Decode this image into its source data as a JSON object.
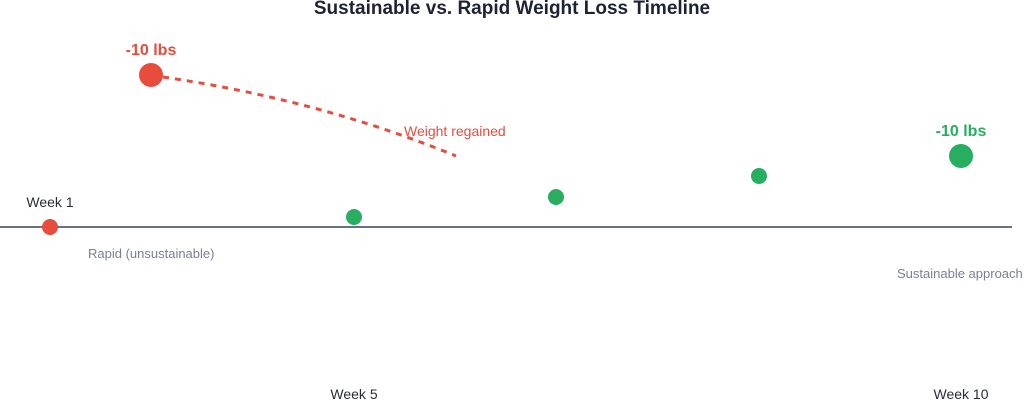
{
  "title": "Sustainable vs. Rapid Weight Loss Timeline",
  "labels": {
    "week_1": "Week 1",
    "week_5": "Week 5",
    "week_10": "Week 10",
    "rapid": "Rapid (unsustainable)",
    "sustainable": "Sustainable approach",
    "rapid_loss": "-10 lbs",
    "sustainable_loss": "-10 lbs",
    "regain": "Weight regained"
  },
  "colors": {
    "rapid": "#e74c3c",
    "sustainable": "#27ae60",
    "baseline": "#6b6f85",
    "muted_text": "#7a7f99"
  }
}
